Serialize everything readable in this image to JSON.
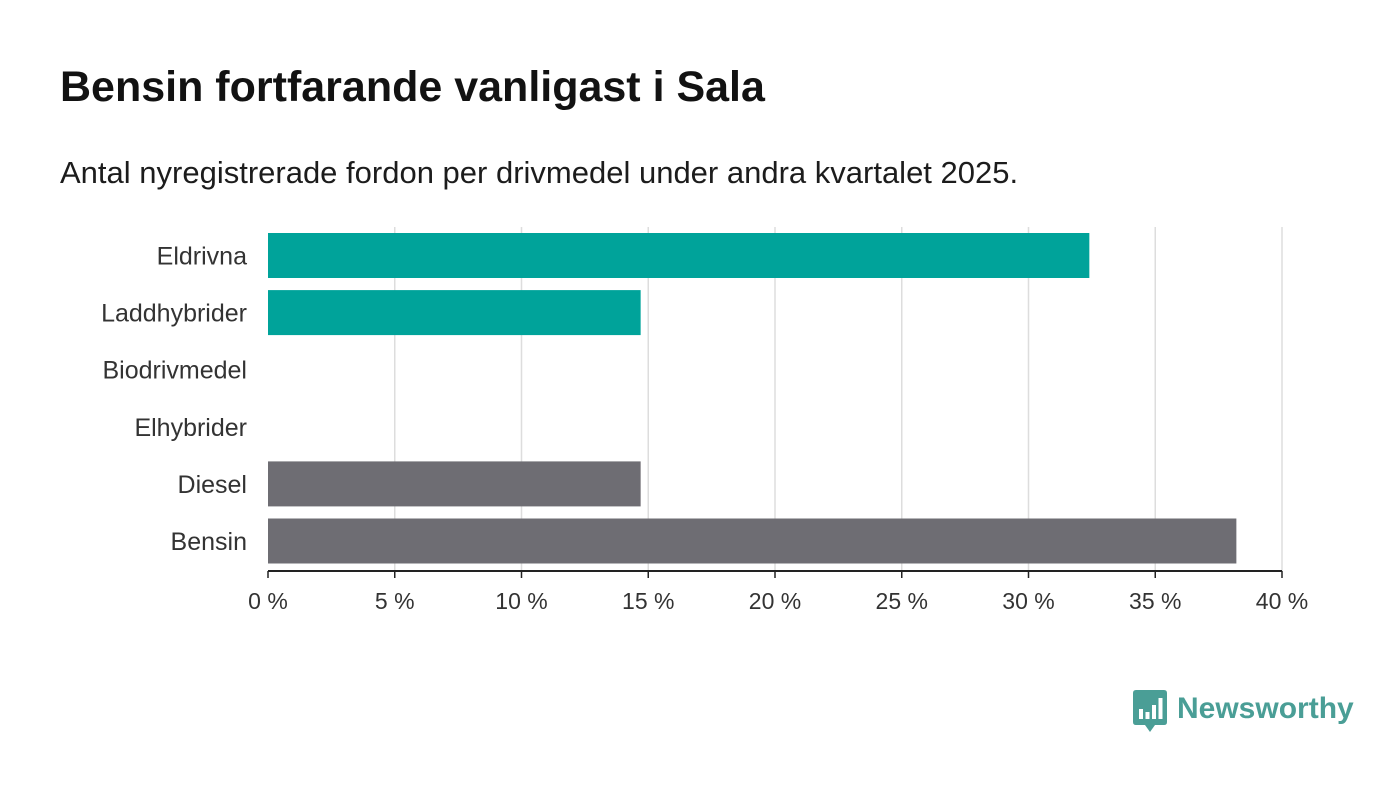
{
  "header": {
    "title": "Bensin fortfarande vanligast i Sala",
    "subtitle": "Antal nyregistrerade fordon per drivmedel under andra kvartalet 2025."
  },
  "chart_data": {
    "type": "bar",
    "orientation": "horizontal",
    "title": "Bensin fortfarande vanligast i Sala",
    "subtitle": "Antal nyregistrerade fordon per drivmedel under andra kvartalet 2025.",
    "xlabel": "",
    "ylabel": "",
    "categories": [
      "Eldrivna",
      "Laddhybrider",
      "Biodrivmedel",
      "Elhybrider",
      "Diesel",
      "Bensin"
    ],
    "values": [
      32.4,
      14.7,
      0,
      0,
      14.7,
      38.2
    ],
    "bar_colors": [
      "#00a39a",
      "#00a39a",
      "#00a39a",
      "#00a39a",
      "#6e6d73",
      "#6e6d73"
    ],
    "xlim": [
      0,
      40
    ],
    "xticks": [
      0,
      5,
      10,
      15,
      20,
      25,
      30,
      35,
      40
    ],
    "xtick_labels": [
      "0 %",
      "5 %",
      "10 %",
      "15 %",
      "20 %",
      "25 %",
      "30 %",
      "35 %",
      "40 %"
    ],
    "grid": true,
    "legend": "none"
  },
  "footer": {
    "brand": "Newsworthy",
    "brand_icon": "newsworthy-logo-icon",
    "brand_color": "#4a9e96"
  },
  "colors": {
    "electric": "#00a39a",
    "fossil": "#6e6d73",
    "gridline": "#dddddd",
    "axis": "#222222"
  }
}
